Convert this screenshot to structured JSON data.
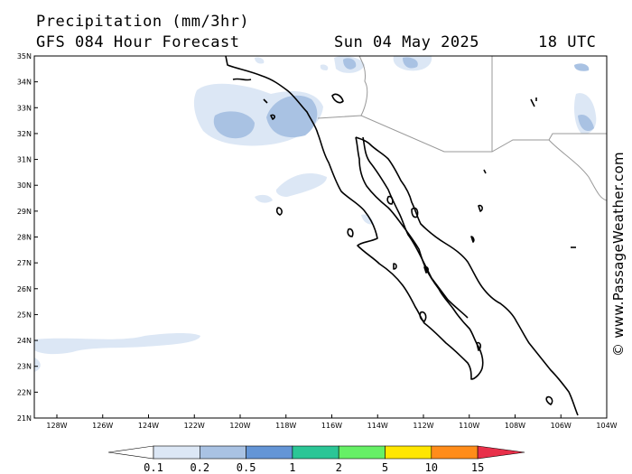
{
  "header": {
    "title": "Precipitation (mm/3hr)",
    "subtitle": "GFS 084 Hour Forecast",
    "date": "Sun 04 May 2025",
    "time": "18 UTC"
  },
  "map": {
    "lat_labels": [
      "35N",
      "34N",
      "33N",
      "32N",
      "31N",
      "30N",
      "29N",
      "28N",
      "27N",
      "26N",
      "25N",
      "24N",
      "23N",
      "22N",
      "21N"
    ],
    "lon_labels": [
      "128W",
      "126W",
      "124W",
      "122W",
      "120W",
      "118W",
      "116W",
      "114W",
      "112W",
      "110W",
      "108W",
      "106W",
      "104W"
    ],
    "lat_range": [
      21,
      35
    ],
    "lon_range": [
      -128.5,
      -104
    ]
  },
  "legend": {
    "labels": [
      "0.1",
      "0.2",
      "0.5",
      "1",
      "2",
      "5",
      "10",
      "15"
    ],
    "colors": [
      "#ffffff",
      "#dce7f5",
      "#a9c2e3",
      "#6495d6",
      "#2bc696",
      "#66f066",
      "#ffe600",
      "#ff8c1a",
      "#e8304a"
    ]
  },
  "credit": "© www.PassageWeather.com"
}
